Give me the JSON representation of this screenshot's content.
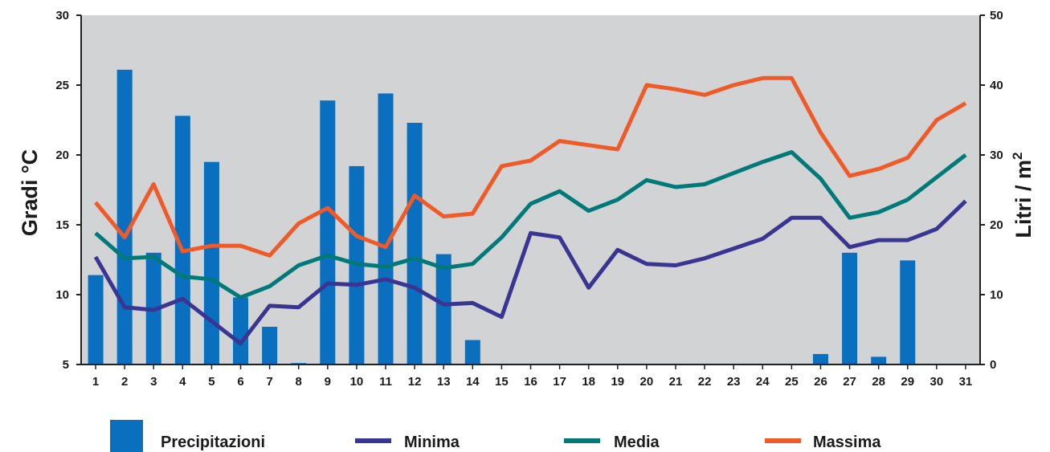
{
  "chart_data": {
    "type": "bar+line",
    "x": [
      "1",
      "2",
      "3",
      "4",
      "5",
      "6",
      "7",
      "8",
      "9",
      "10",
      "11",
      "12",
      "13",
      "14",
      "15",
      "16",
      "17",
      "18",
      "19",
      "20",
      "21",
      "22",
      "23",
      "24",
      "25",
      "26",
      "27",
      "28",
      "29",
      "30",
      "31"
    ],
    "bars": {
      "name": "Precipitazioni",
      "axis": "right",
      "color": "#0a6fbf",
      "values": [
        12.8,
        42.2,
        16,
        35.6,
        29,
        9.6,
        5.4,
        0.2,
        37.8,
        28.4,
        38.8,
        34.6,
        15.8,
        3.5,
        0,
        0,
        0,
        0,
        0,
        0,
        0,
        0,
        0,
        0,
        0,
        1.5,
        16,
        1.1,
        14.9,
        0,
        0
      ]
    },
    "series": [
      {
        "name": "Minima",
        "axis": "left",
        "color": "#3a3593",
        "values": [
          12.7,
          9.1,
          8.9,
          9.7,
          8.1,
          6.5,
          9.2,
          9.1,
          10.8,
          10.7,
          11.1,
          10.5,
          9.3,
          9.4,
          8.4,
          14.4,
          14.1,
          10.5,
          13.2,
          12.2,
          12.1,
          12.6,
          13.3,
          14.0,
          15.5,
          15.5,
          13.4,
          13.9,
          13.9,
          14.7,
          16.7
        ]
      },
      {
        "name": "Media",
        "axis": "left",
        "color": "#007a78",
        "values": [
          14.4,
          12.6,
          12.7,
          11.3,
          11.1,
          9.8,
          10.6,
          12.1,
          12.8,
          12.2,
          12.0,
          12.6,
          11.9,
          12.2,
          14.1,
          16.5,
          17.4,
          16.0,
          16.8,
          18.2,
          17.7,
          17.9,
          18.7,
          19.5,
          20.2,
          18.3,
          15.5,
          15.9,
          16.8,
          18.4,
          20.0
        ]
      },
      {
        "name": "Massima",
        "axis": "left",
        "color": "#f05a28",
        "values": [
          16.6,
          14.1,
          17.9,
          13.1,
          13.5,
          13.5,
          12.8,
          15.1,
          16.2,
          14.2,
          13.4,
          17.1,
          15.6,
          15.8,
          19.2,
          19.6,
          21.0,
          20.7,
          20.4,
          25.0,
          24.7,
          24.3,
          25.0,
          25.5,
          25.5,
          21.6,
          18.5,
          19.0,
          19.8,
          22.5,
          23.7
        ]
      }
    ],
    "y_left": {
      "label": "Gradi °C",
      "ylim": [
        5,
        30
      ],
      "ticks": [
        "5",
        "10",
        "15",
        "20",
        "25",
        "30"
      ]
    },
    "y_right": {
      "label": "Litri / m",
      "label_sup": "2",
      "ylim": [
        0,
        50
      ],
      "ticks": [
        "0",
        "10",
        "20",
        "30",
        "40",
        "50"
      ]
    },
    "plot_background": "#d1d3d4",
    "grid": false,
    "legend_placement": "bottom"
  }
}
